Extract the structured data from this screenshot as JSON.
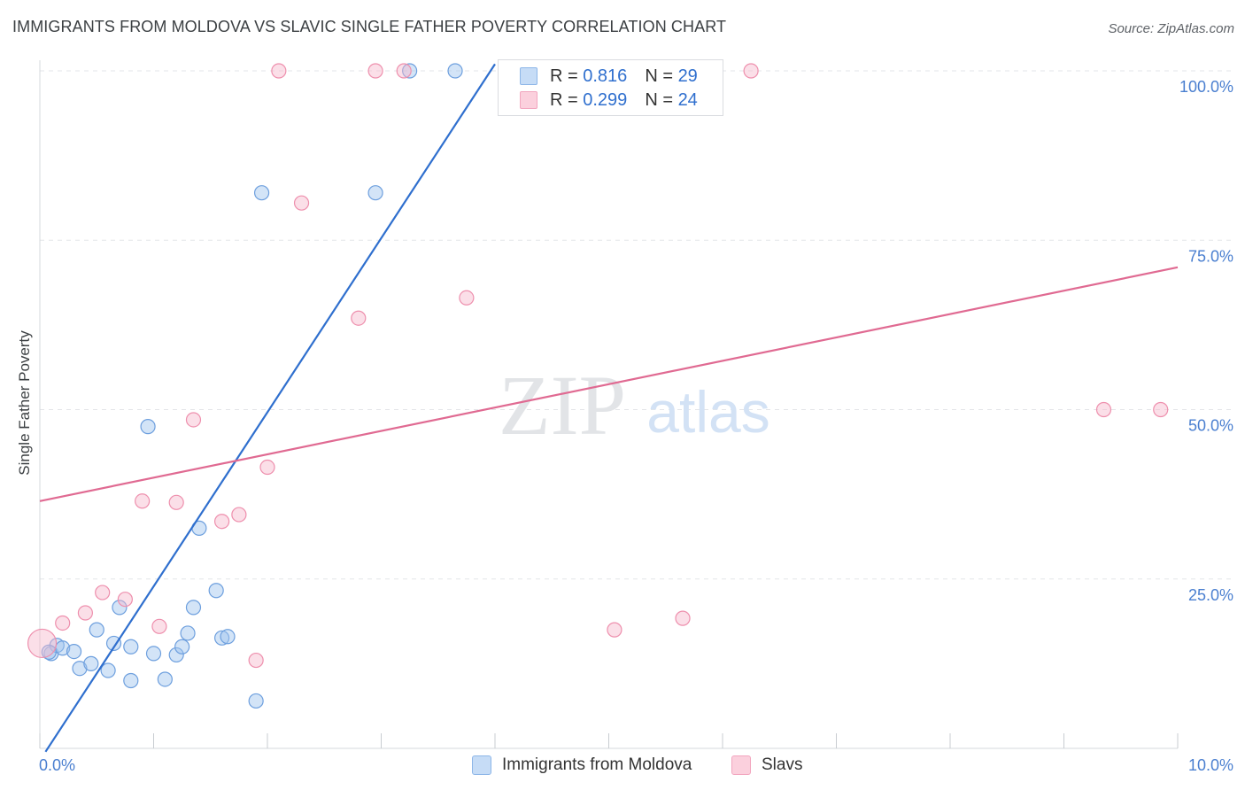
{
  "title": "IMMIGRANTS FROM MOLDOVA VS SLAVIC SINGLE FATHER POVERTY CORRELATION CHART",
  "source": "Source: ZipAtlas.com",
  "watermark": {
    "zip": "ZIP",
    "atlas": "atlas"
  },
  "legend": {
    "r_label": "R =",
    "n_label": "N =",
    "rows": [
      {
        "r": "0.816",
        "n": "29"
      },
      {
        "r": "0.299",
        "n": "24"
      }
    ]
  },
  "chart_data": {
    "type": "scatter",
    "title": "IMMIGRANTS FROM MOLDOVA VS SLAVIC SINGLE FATHER POVERTY CORRELATION CHART",
    "xlabel": "",
    "ylabel": "Single Father Poverty",
    "xlim": [
      0,
      10
    ],
    "ylim": [
      0,
      100
    ],
    "x_tick_labels": [
      "0.0%",
      "10.0%"
    ],
    "y_tick_labels": [
      "100.0%",
      "75.0%",
      "50.0%",
      "25.0%"
    ],
    "y_tick_values": [
      100,
      75,
      50,
      25
    ],
    "grid": true,
    "series": [
      {
        "name": "Immigrants from Moldova",
        "color": "#9ec3ee",
        "stroke": "#6d9fde",
        "line_color": "#2f6fce",
        "trend": {
          "x": [
            0.05,
            4.0
          ],
          "y": [
            -0.5,
            101
          ]
        },
        "points": [
          [
            0.1,
            14.0
          ],
          [
            0.15,
            15.2
          ],
          [
            0.2,
            14.8
          ],
          [
            0.3,
            14.3
          ],
          [
            0.35,
            11.8
          ],
          [
            0.45,
            12.5
          ],
          [
            0.5,
            17.5
          ],
          [
            0.6,
            11.5
          ],
          [
            0.65,
            15.5
          ],
          [
            0.7,
            20.8
          ],
          [
            0.8,
            10.0
          ],
          [
            0.8,
            15.0
          ],
          [
            0.95,
            47.5
          ],
          [
            1.0,
            14.0
          ],
          [
            1.1,
            10.2
          ],
          [
            1.2,
            13.8
          ],
          [
            1.25,
            15.0
          ],
          [
            1.3,
            17.0
          ],
          [
            1.35,
            20.8
          ],
          [
            1.4,
            32.5
          ],
          [
            1.55,
            23.3
          ],
          [
            1.6,
            16.3
          ],
          [
            1.65,
            16.5
          ],
          [
            1.9,
            7.0
          ],
          [
            1.95,
            82.0
          ],
          [
            2.95,
            82.0
          ],
          [
            3.25,
            100
          ],
          [
            3.65,
            100
          ],
          [
            0.08,
            14.2
          ]
        ]
      },
      {
        "name": "Slavs",
        "color": "#f7b8cb",
        "stroke": "#ee8fad",
        "line_color": "#e06a92",
        "trend": {
          "x": [
            0.0,
            10.0
          ],
          "y": [
            36.5,
            71.0
          ]
        },
        "points": [
          [
            0.02,
            15.5
          ],
          [
            0.2,
            18.5
          ],
          [
            0.4,
            20.0
          ],
          [
            0.55,
            23.0
          ],
          [
            0.75,
            22.0
          ],
          [
            0.9,
            36.5
          ],
          [
            1.05,
            18.0
          ],
          [
            1.2,
            36.3
          ],
          [
            1.35,
            48.5
          ],
          [
            1.6,
            33.5
          ],
          [
            1.75,
            34.5
          ],
          [
            1.9,
            13.0
          ],
          [
            2.0,
            41.5
          ],
          [
            2.1,
            100
          ],
          [
            2.3,
            80.5
          ],
          [
            2.8,
            63.5
          ],
          [
            2.95,
            100
          ],
          [
            3.2,
            100
          ],
          [
            3.75,
            66.5
          ],
          [
            5.05,
            17.5
          ],
          [
            5.65,
            19.2
          ],
          [
            6.25,
            100
          ],
          [
            9.35,
            50.0
          ],
          [
            9.85,
            50.0
          ]
        ]
      }
    ]
  }
}
